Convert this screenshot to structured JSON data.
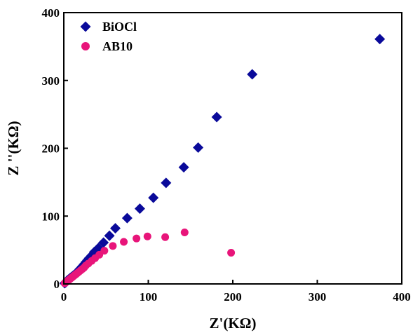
{
  "chart_data": {
    "type": "scatter",
    "title": "",
    "xlabel": "Z'(KΩ)",
    "ylabel": "Z ''(KΩ)",
    "xlim": [
      0,
      400
    ],
    "ylim": [
      0,
      400
    ],
    "xticks": [
      0,
      100,
      200,
      300,
      400
    ],
    "yticks": [
      0,
      100,
      200,
      300,
      400
    ],
    "grid": false,
    "legend_position": "top-left",
    "series": [
      {
        "name": "BiOCl",
        "marker": "diamond",
        "color": "#0a0a9a",
        "x": [
          1,
          2,
          3,
          4,
          5,
          6,
          7,
          8,
          9,
          10,
          11,
          12,
          13,
          14,
          15,
          16,
          17,
          18,
          19,
          20,
          22,
          24,
          26,
          28,
          30,
          33,
          36,
          41,
          47,
          54,
          61,
          75,
          90,
          106,
          121,
          142,
          159,
          181,
          223,
          374
        ],
        "y": [
          1,
          2,
          3,
          5,
          6,
          7,
          8,
          9,
          10,
          11,
          12,
          13,
          14,
          15,
          16,
          17,
          19,
          20,
          22,
          23,
          26,
          29,
          32,
          35,
          38,
          42,
          47,
          53,
          61,
          71,
          82,
          97,
          111,
          127,
          149,
          172,
          201,
          246,
          309,
          361
        ]
      },
      {
        "name": "AB10",
        "marker": "circle",
        "color": "#e8157a",
        "x": [
          1,
          2,
          3,
          4,
          5,
          6,
          7,
          8,
          9,
          10,
          11,
          12,
          13,
          14,
          15,
          16,
          18,
          20,
          22,
          24,
          26,
          29,
          33,
          37,
          42,
          48,
          58,
          71,
          86,
          99,
          120,
          143,
          198
        ],
        "y": [
          1,
          2,
          3,
          4,
          5,
          6,
          7,
          8,
          9,
          10,
          11,
          12,
          13,
          14,
          15,
          16,
          18,
          20,
          22,
          24,
          27,
          30,
          34,
          38,
          43,
          49,
          56,
          62,
          67,
          70,
          69,
          76,
          46
        ]
      }
    ]
  }
}
